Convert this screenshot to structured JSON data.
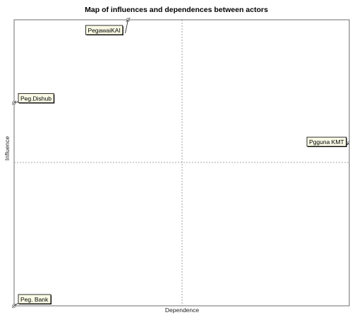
{
  "chart_data": {
    "type": "scatter",
    "title": "Map of influences and dependences between actors",
    "xlabel": "Dependence",
    "ylabel": "Influence",
    "xlim": [
      0,
      1
    ],
    "ylim": [
      0,
      1
    ],
    "axis_values_shown": false,
    "grid": "center crosshair (dashed)",
    "points": [
      {
        "label": "PegawaiKAI",
        "x": 0.34,
        "y": 1.0
      },
      {
        "label": "Peg.Dishub",
        "x": 0.0,
        "y": 0.71
      },
      {
        "label": "Pgguna KMT",
        "x": 1.0,
        "y": 0.57
      },
      {
        "label": "Peg. Bank",
        "x": 0.0,
        "y": 0.0
      }
    ],
    "colors": {
      "frame": "#6e6e6e",
      "gridline": "#8a8a8a",
      "label_fill": "#fafae6",
      "label_border": "#000000",
      "marker": "#7a7a7a"
    }
  }
}
